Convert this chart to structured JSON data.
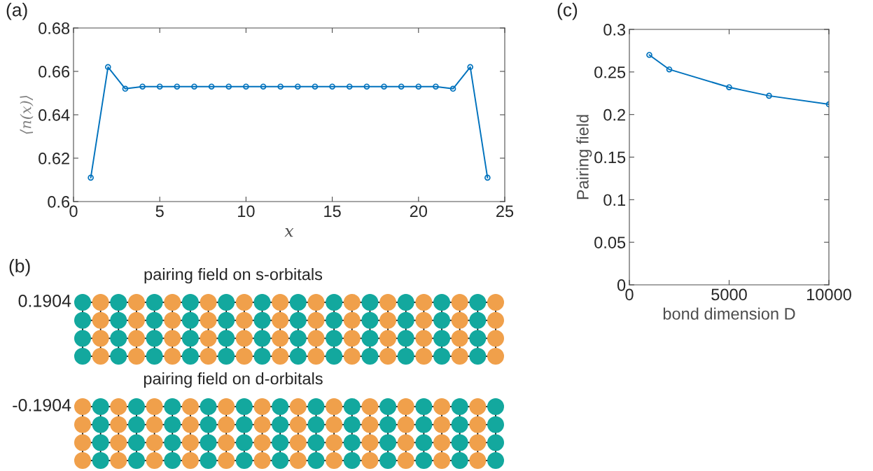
{
  "chart_data": [
    {
      "type": "line",
      "annotations": [
        "(a)"
      ],
      "xlabel": "x",
      "ylabel": "⟨n(x)⟩",
      "x": [
        1,
        2,
        3,
        4,
        5,
        6,
        7,
        8,
        9,
        10,
        11,
        12,
        13,
        14,
        15,
        16,
        17,
        18,
        19,
        20,
        21,
        22,
        23,
        24
      ],
      "series": [
        {
          "color": "#0072bd",
          "values": [
            0.611,
            0.662,
            0.652,
            0.653,
            0.653,
            0.653,
            0.653,
            0.653,
            0.653,
            0.653,
            0.653,
            0.653,
            0.653,
            0.653,
            0.653,
            0.653,
            0.653,
            0.653,
            0.653,
            0.653,
            0.653,
            0.652,
            0.662,
            0.611
          ]
        }
      ],
      "xlim": [
        0,
        25
      ],
      "xticks": [
        0,
        5,
        10,
        15,
        20,
        25
      ],
      "ylim": [
        0.6,
        0.68
      ],
      "yticks": [
        0.6,
        0.62,
        0.64,
        0.66,
        0.68
      ],
      "marker": "circle",
      "line_style": "solid"
    },
    {
      "type": "other",
      "annotations": [
        "(b)",
        "pairing field on s-orbitals",
        "0.1904",
        "pairing field on d-orbitals",
        "-0.1904"
      ]
    },
    {
      "type": "line",
      "annotations": [
        "(c)"
      ],
      "xlabel": "bond dimension D",
      "ylabel": "Pairing field",
      "x": [
        1000,
        2000,
        5000,
        7000,
        10000
      ],
      "series": [
        {
          "color": "#0072bd",
          "values": [
            0.27,
            0.253,
            0.232,
            0.222,
            0.212
          ]
        }
      ],
      "xlim": [
        0,
        10000
      ],
      "xticks": [
        0,
        5000,
        10000
      ],
      "ylim": [
        0,
        0.3
      ],
      "yticks": [
        0,
        0.05,
        0.1,
        0.15,
        0.2,
        0.25,
        0.3
      ],
      "marker": "circle",
      "line_style": "solid"
    }
  ]
}
